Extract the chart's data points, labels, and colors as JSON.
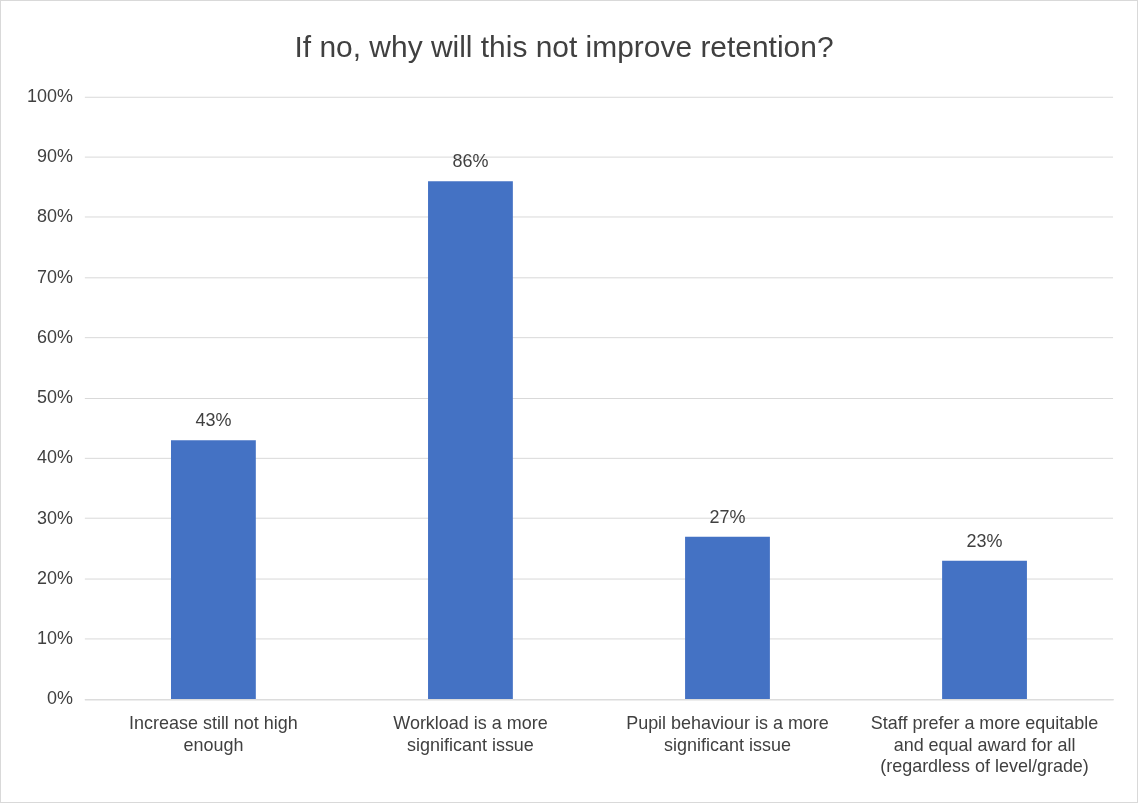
{
  "chart_data": {
    "type": "bar",
    "title": "If no, why will this not improve retention?",
    "categories": [
      "Increase still not high enough",
      "Workload is a more significant issue",
      "Pupil behaviour is a more significant issue",
      "Staff prefer a more equitable and equal award for all (regardless of level/grade)"
    ],
    "values": [
      43,
      86,
      27,
      23
    ],
    "value_labels": [
      "43%",
      "86%",
      "27%",
      "23%"
    ],
    "color": "#4472c4",
    "ylim": [
      0,
      100
    ],
    "yticks": [
      {
        "value": 0,
        "label": "0%"
      },
      {
        "value": 10,
        "label": "10%"
      },
      {
        "value": 20,
        "label": "20%"
      },
      {
        "value": 30,
        "label": "30%"
      },
      {
        "value": 40,
        "label": "40%"
      },
      {
        "value": 50,
        "label": "50%"
      },
      {
        "value": 60,
        "label": "60%"
      },
      {
        "value": 70,
        "label": "70%"
      },
      {
        "value": 80,
        "label": "80%"
      },
      {
        "value": 90,
        "label": "90%"
      },
      {
        "value": 100,
        "label": "100%"
      }
    ],
    "grid": "y",
    "legend": false
  }
}
